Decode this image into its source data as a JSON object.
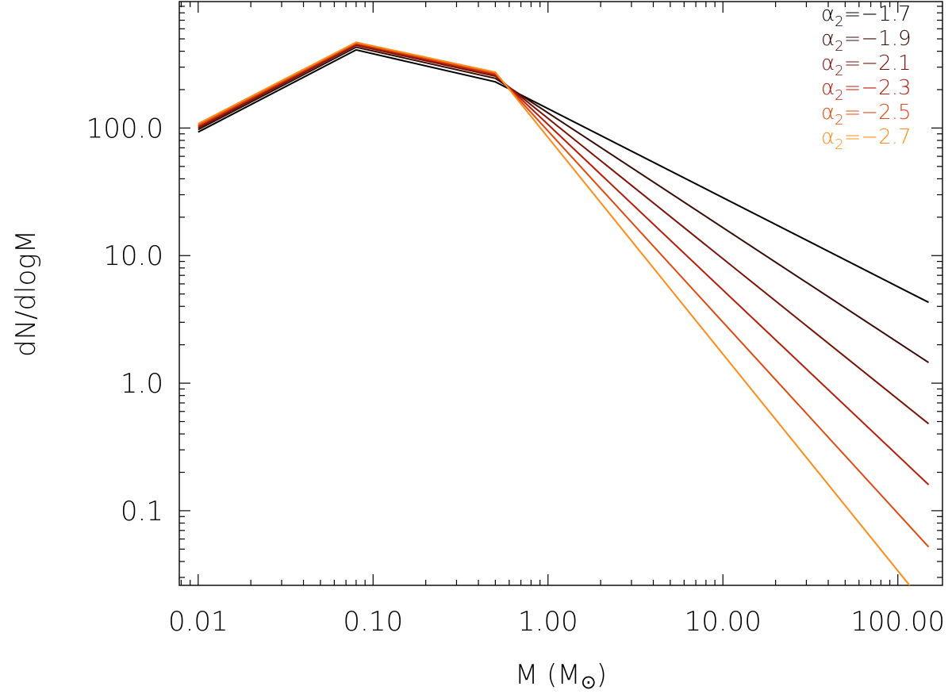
{
  "chart_data": {
    "type": "line",
    "title": "",
    "xlabel": "M (M",
    "xlabel_symbol": "⊙",
    "xlabel_close": ")",
    "ylabel": "dN/dlogM",
    "xscale": "log",
    "yscale": "log",
    "xlim": [
      0.0078,
      180
    ],
    "ylim": [
      0.026,
      980
    ],
    "xticks": [
      {
        "value": 0.01,
        "label": "0.01"
      },
      {
        "value": 0.1,
        "label": "0.10"
      },
      {
        "value": 1,
        "label": "1.00"
      },
      {
        "value": 10,
        "label": "10.00"
      },
      {
        "value": 100,
        "label": "100.00"
      }
    ],
    "yticks": [
      {
        "value": 0.1,
        "label": "0.1"
      },
      {
        "value": 1,
        "label": "1.0"
      },
      {
        "value": 10,
        "label": "10.0"
      },
      {
        "value": 100,
        "label": "100.0"
      }
    ],
    "grid": false,
    "legend_position": "top-right",
    "series": [
      {
        "name_prefix": "α",
        "name_sub": "2",
        "name_value": "=−1.7",
        "color": "#000000",
        "x": [
          0.01,
          0.08,
          0.5,
          150
        ],
        "y": [
          93,
          410,
          230,
          4.3
        ]
      },
      {
        "name_prefix": "α",
        "name_sub": "2",
        "name_value": "=−1.9",
        "color": "#3a0c06",
        "x": [
          0.01,
          0.08,
          0.5,
          150
        ],
        "y": [
          97,
          430,
          245,
          1.45
        ]
      },
      {
        "name_prefix": "α",
        "name_sub": "2",
        "name_value": "=−2.1",
        "color": "#7a1208",
        "x": [
          0.01,
          0.08,
          0.5,
          150
        ],
        "y": [
          100,
          445,
          255,
          0.48
        ]
      },
      {
        "name_prefix": "α",
        "name_sub": "2",
        "name_value": "=−2.3",
        "color": "#b51e0c",
        "x": [
          0.01,
          0.08,
          0.5,
          150
        ],
        "y": [
          103,
          455,
          262,
          0.16
        ]
      },
      {
        "name_prefix": "α",
        "name_sub": "2",
        "name_value": "=−2.5",
        "color": "#e04a10",
        "x": [
          0.01,
          0.08,
          0.5,
          150
        ],
        "y": [
          105,
          462,
          268,
          0.052
        ]
      },
      {
        "name_prefix": "α",
        "name_sub": "2",
        "name_value": "=−2.7",
        "color": "#ff8c1a",
        "x": [
          0.01,
          0.08,
          0.5,
          150
        ],
        "y": [
          108,
          470,
          274,
          0.017
        ]
      }
    ]
  }
}
